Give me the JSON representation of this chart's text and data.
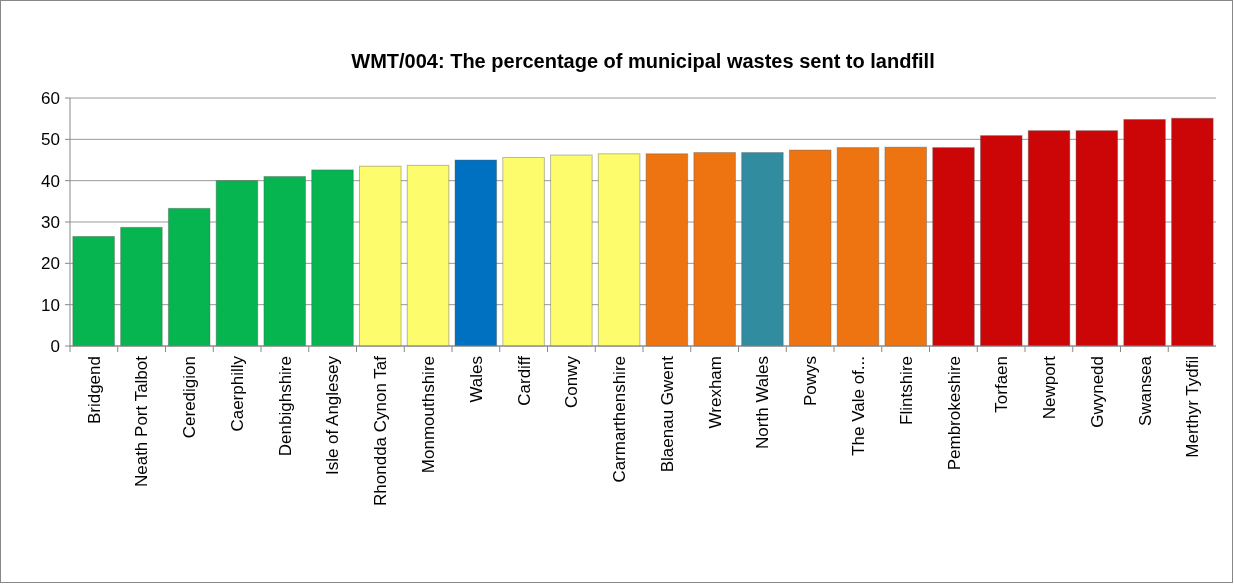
{
  "chart_data": {
    "type": "bar",
    "title": "WMT/004: The percentage of municipal  wastes sent to landfill",
    "categories": [
      "Bridgend",
      "Neath Port Talbot",
      "Ceredigion",
      "Caerphilly",
      "Denbighshire",
      "Isle of Anglesey",
      "Rhondda Cynon Taf",
      "Monmouthshire",
      "Wales",
      "Cardiff",
      "Conwy",
      "Carmarthenshire",
      "Blaenau Gwent",
      "Wrexham",
      "North Wales",
      "Powys",
      "The Vale of...",
      "Flintshire",
      "Pembrokeshire",
      "Torfaen",
      "Newport",
      "Gwynedd",
      "Swansea",
      "Merthyr Tydfil"
    ],
    "values": [
      26.5,
      28.7,
      33.3,
      40.0,
      41.0,
      42.6,
      43.5,
      43.7,
      45.0,
      45.6,
      46.2,
      46.5,
      46.5,
      46.8,
      46.8,
      47.4,
      48.0,
      48.1,
      48.0,
      50.9,
      52.1,
      52.1,
      54.8,
      55.1
    ],
    "colors": [
      "#06b550",
      "#06b550",
      "#06b550",
      "#06b550",
      "#06b550",
      "#06b550",
      "#fcfc6c",
      "#fcfc6c",
      "#0070c0",
      "#fcfc6c",
      "#fcfc6c",
      "#fcfc6c",
      "#ee7412",
      "#ee7412",
      "#318ca0",
      "#ee7412",
      "#ee7412",
      "#ee7412",
      "#cc0606",
      "#cc0606",
      "#cc0606",
      "#cc0606",
      "#cc0606",
      "#cc0606"
    ],
    "ylim": [
      0,
      60
    ],
    "yticks": [
      0,
      10,
      20,
      30,
      40,
      50,
      60
    ],
    "grid": "y"
  }
}
